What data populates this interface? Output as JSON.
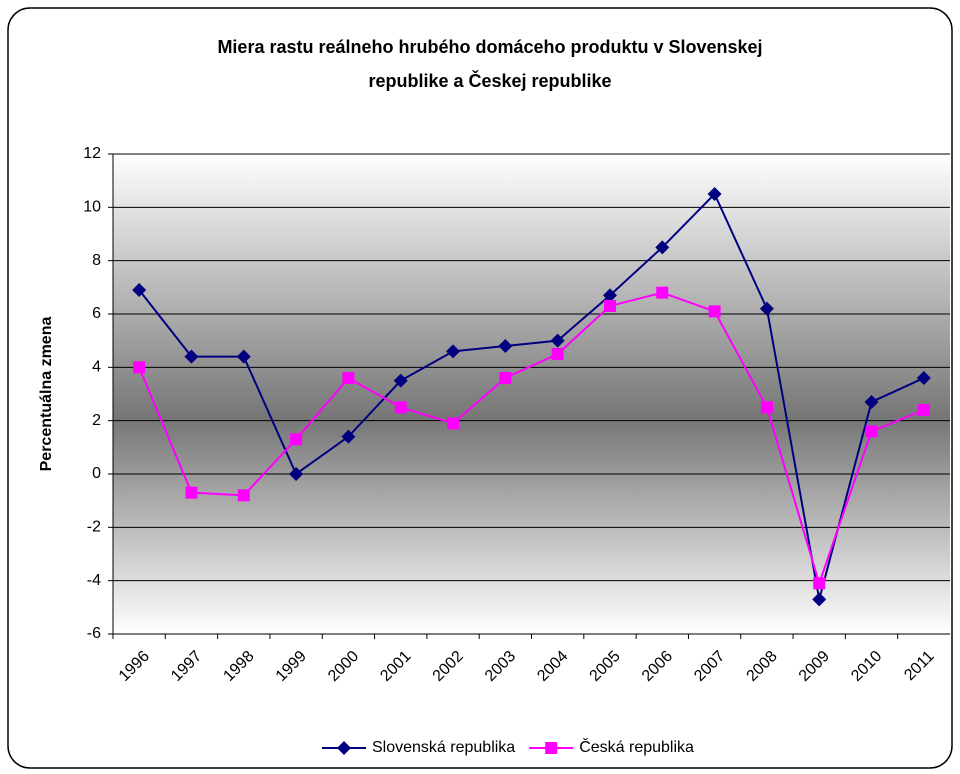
{
  "chart_data": {
    "type": "line",
    "title": [
      "Miera rastu reálneho hrubého domáceho produktu v Slovenskej",
      "republike a Českej republike"
    ],
    "y_label": "Percentuálna zmena",
    "categories": [
      "1996",
      "1997",
      "1998",
      "1999",
      "2000",
      "2001",
      "2002",
      "2003",
      "2004",
      "2005",
      "2006",
      "2007",
      "2008",
      "2009",
      "2010",
      "2011"
    ],
    "series": [
      {
        "name": "Slovenská republika",
        "color": "#000080",
        "marker": "diamond",
        "values": [
          6.9,
          4.4,
          4.4,
          0.0,
          1.4,
          3.5,
          4.6,
          4.8,
          5.0,
          6.7,
          8.5,
          10.5,
          6.2,
          -4.7,
          2.7,
          3.6
        ]
      },
      {
        "name": "Česká republika",
        "color": "#ff00ff",
        "marker": "square",
        "values": [
          4.0,
          -0.7,
          -0.8,
          1.3,
          3.6,
          2.5,
          1.9,
          3.6,
          4.5,
          6.3,
          6.8,
          6.1,
          2.5,
          -4.1,
          1.6,
          2.4
        ]
      }
    ],
    "ylim": [
      -6,
      12
    ],
    "yticks": [
      -6,
      -4,
      -2,
      0,
      2,
      4,
      6,
      8,
      10,
      12
    ],
    "grid": true,
    "legend": "bottom"
  }
}
